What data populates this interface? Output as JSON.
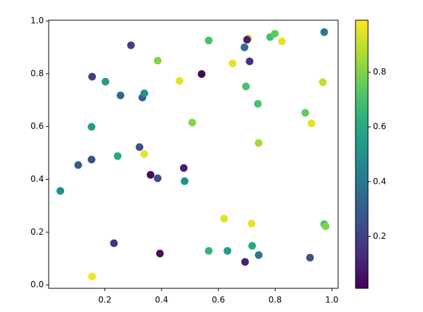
{
  "chart_data": {
    "type": "scatter",
    "colormap": "viridis",
    "x": [
      0.043,
      0.106,
      0.153,
      0.155,
      0.155,
      0.153,
      0.202,
      0.232,
      0.245,
      0.255,
      0.292,
      0.322,
      0.332,
      0.339,
      0.339,
      0.361,
      0.386,
      0.386,
      0.394,
      0.463,
      0.478,
      0.481,
      0.508,
      0.541,
      0.566,
      0.566,
      0.62,
      0.632,
      0.65,
      0.692,
      0.697,
      0.694,
      0.706,
      0.701,
      0.71,
      0.717,
      0.719,
      0.739,
      0.742,
      0.742,
      0.782,
      0.799,
      0.824,
      0.906,
      0.928,
      0.923,
      0.968,
      0.973,
      0.973,
      0.978
    ],
    "y": [
      0.356,
      0.454,
      0.599,
      0.032,
      0.789,
      0.475,
      0.77,
      0.158,
      0.488,
      0.718,
      0.908,
      0.522,
      0.71,
      0.726,
      0.496,
      0.417,
      0.404,
      0.85,
      0.119,
      0.773,
      0.443,
      0.393,
      0.615,
      0.799,
      0.926,
      0.129,
      0.251,
      0.129,
      0.839,
      0.9,
      0.752,
      0.087,
      0.934,
      0.929,
      0.847,
      0.232,
      0.148,
      0.686,
      0.538,
      0.113,
      0.939,
      0.952,
      0.923,
      0.652,
      0.612,
      0.103,
      0.768,
      0.958,
      0.23,
      0.222
    ],
    "c": [
      0.5,
      0.3,
      0.55,
      0.97,
      0.2,
      0.25,
      0.55,
      0.15,
      0.6,
      0.35,
      0.2,
      0.25,
      0.3,
      0.5,
      0.95,
      0.05,
      0.25,
      0.8,
      0.05,
      0.95,
      0.1,
      0.5,
      0.8,
      0.02,
      0.7,
      0.65,
      0.95,
      0.55,
      0.95,
      0.35,
      0.7,
      0.1,
      0.95,
      0.1,
      0.15,
      0.95,
      0.6,
      0.7,
      0.85,
      0.4,
      0.7,
      0.75,
      0.95,
      0.75,
      0.95,
      0.25,
      0.9,
      0.4,
      0.7,
      0.8
    ],
    "xlim": [
      0.002,
      1.022
    ],
    "ylim": [
      -0.013,
      1.003
    ],
    "clim": [
      0.01,
      0.99
    ],
    "xticks": [
      0.2,
      0.4,
      0.6,
      0.8,
      {
        "value": 1,
        "label": "1.0"
      }
    ],
    "yticks": [
      {
        "value": 0,
        "label": "0.0"
      },
      0.2,
      0.4,
      0.6,
      0.8,
      {
        "value": 1,
        "label": "1.0"
      }
    ],
    "cticks": [
      0.2,
      0.4,
      0.6,
      0.8
    ]
  }
}
